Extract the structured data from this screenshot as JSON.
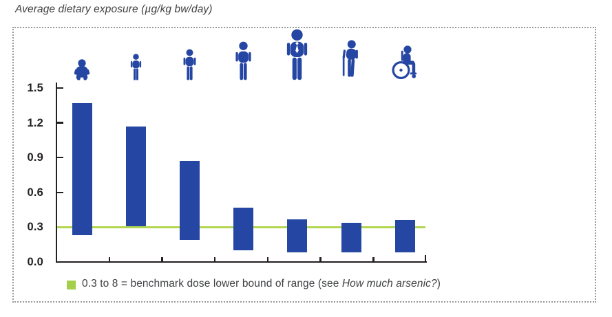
{
  "title": "Average dietary exposure (µg/kg bw/day)",
  "colors": {
    "bar_blue": "#2646a3",
    "icon_blue": "#2646a3",
    "benchmark_green": "#b2d64f",
    "legend_green": "#a3cf4a",
    "axis_black": "#231f20",
    "text_dark": "#3f4042",
    "border_gray": "#97999c"
  },
  "legend": {
    "text_prefix": "0.3 to 8 = benchmark dose lower bound of range (see ",
    "text_italic": "How much arsenic?",
    "text_suffix": ")"
  },
  "age_group_icons": [
    "infant",
    "toddler",
    "child",
    "adolescent",
    "adult",
    "elderly-with-cane",
    "person-in-wheelchair"
  ],
  "chart_data": {
    "type": "bar",
    "subtype": "floating-range-bars",
    "title": "Average dietary exposure (µg/kg bw/day)",
    "categories": [
      "infants",
      "toddlers",
      "children",
      "adolescents",
      "adults",
      "elderly",
      "very elderly"
    ],
    "series": [
      {
        "name": "average dietary exposure range",
        "low": [
          0.23,
          0.31,
          0.19,
          0.1,
          0.08,
          0.08,
          0.08
        ],
        "high": [
          1.37,
          1.17,
          0.87,
          0.47,
          0.37,
          0.34,
          0.36
        ]
      }
    ],
    "ylim": [
      0,
      1.5
    ],
    "yticks": [
      0.0,
      0.3,
      0.6,
      0.9,
      1.2,
      1.5
    ],
    "benchmark_line": {
      "value": 0.3,
      "label": "0.3 to 8 = benchmark dose lower bound of range (see How much arsenic?)"
    },
    "grid": false,
    "legend_position": "bottom"
  }
}
